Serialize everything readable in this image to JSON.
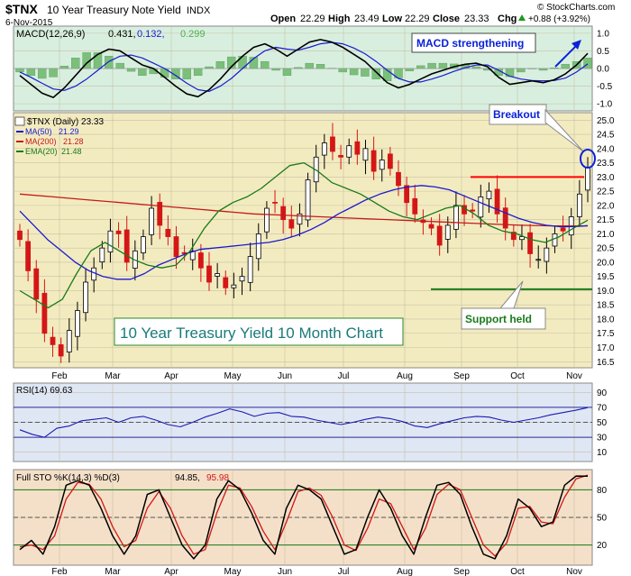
{
  "header": {
    "symbol": "$TNX",
    "name": "10 Year Treasury Note Yield",
    "exchange": "INDX",
    "date": "6-Nov-2015",
    "open_label": "Open",
    "open": "22.29",
    "high_label": "High",
    "high": "23.49",
    "low_label": "Low",
    "low": "22.29",
    "close_label": "Close",
    "close": "23.33",
    "chg_label": "Chg",
    "chg": "+0.88 (+3.92%)",
    "chg_icon": "up-triangle-icon",
    "watermark": "© StockCharts.com"
  },
  "colors": {
    "price_bg": "#f3ebc0",
    "macd_bg": "#d8efe0",
    "rsi_bg": "#dfe7f5",
    "sto_bg": "#f4e0c8",
    "candle": "#000000",
    "candle_down": "#d41616",
    "ma50": "#1a1ad0",
    "ma200": "#c41a1a",
    "ema20": "#1a7a1a",
    "annotation_blue": "#0a22d8",
    "annotation_red": "#ff0000",
    "annotation_green": "#1a7a1a"
  },
  "chart_data": [
    {
      "type": "line",
      "panel": "MACD",
      "legend": "MACD(12,26,9) 0.431, 0.132, 0.299",
      "legend_parts": [
        "MACD(12,26,9)",
        "0.431,",
        "0.132,",
        "0.299"
      ],
      "yticks": [
        "1.0",
        "0.5",
        "0.0",
        "-0.5",
        "-1.0"
      ],
      "ylim": [
        -1.15,
        1.15
      ],
      "series": [
        {
          "name": "MACD",
          "values": [
            -0.2,
            -0.45,
            -0.7,
            -0.82,
            -0.55,
            -0.2,
            0.15,
            0.4,
            0.55,
            0.5,
            0.3,
            0.1,
            0.0,
            -0.25,
            -0.5,
            -0.72,
            -0.8,
            -0.6,
            -0.3,
            0.05,
            0.35,
            0.6,
            0.7,
            0.55,
            0.35,
            0.55,
            0.75,
            0.82,
            0.75,
            0.6,
            0.4,
            0.2,
            -0.1,
            -0.4,
            -0.55,
            -0.45,
            -0.3,
            -0.15,
            -0.05,
            0.05,
            0.12,
            0.15,
            0.05,
            -0.25,
            -0.45,
            -0.4,
            -0.35,
            -0.4,
            -0.32,
            -0.15,
            0.1,
            0.43
          ]
        },
        {
          "name": "Signal",
          "values": [
            -0.1,
            -0.25,
            -0.42,
            -0.58,
            -0.62,
            -0.5,
            -0.3,
            -0.05,
            0.2,
            0.35,
            0.38,
            0.3,
            0.15,
            0.0,
            -0.2,
            -0.42,
            -0.6,
            -0.65,
            -0.5,
            -0.28,
            0.0,
            0.28,
            0.5,
            0.6,
            0.55,
            0.52,
            0.6,
            0.7,
            0.74,
            0.7,
            0.58,
            0.42,
            0.2,
            -0.05,
            -0.28,
            -0.38,
            -0.38,
            -0.3,
            -0.2,
            -0.08,
            0.02,
            0.1,
            0.1,
            -0.05,
            -0.22,
            -0.3,
            -0.34,
            -0.35,
            -0.34,
            -0.27,
            -0.1,
            0.13
          ]
        }
      ],
      "annotation": "MACD strengthening"
    },
    {
      "type": "candlestick",
      "panel": "Price",
      "legend": "$TNX (Daily) 23.33",
      "legend_items": [
        {
          "label": "MA(50)",
          "value": "21.29"
        },
        {
          "label": "MA(200)",
          "value": "21.28"
        },
        {
          "label": "EMA(20)",
          "value": "21.48"
        }
      ],
      "title": "10 Year Treasury Yield 10 Month Chart",
      "yticks": [
        "25.0",
        "24.5",
        "24.0",
        "23.5",
        "23.0",
        "22.5",
        "22.0",
        "21.5",
        "21.0",
        "20.5",
        "20.0",
        "19.5",
        "19.0",
        "18.5",
        "18.0",
        "17.5",
        "17.0",
        "16.5"
      ],
      "ylim": [
        16.35,
        25.2
      ],
      "xticks": [
        "Feb",
        "Mar",
        "Apr",
        "May",
        "Jun",
        "Jul",
        "Aug",
        "Sep",
        "Oct",
        "Nov"
      ],
      "close": [
        20.8,
        19.7,
        18.7,
        17.5,
        17.1,
        16.7,
        17.6,
        18.3,
        19.3,
        19.8,
        20.5,
        21.1,
        21.0,
        20.0,
        20.4,
        20.9,
        21.9,
        21.3,
        20.9,
        20.2,
        20.3,
        20.4,
        19.8,
        19.3,
        19.6,
        19.1,
        19.2,
        19.5,
        20.2,
        21.0,
        21.9,
        22.1,
        21.5,
        21.2,
        21.7,
        22.9,
        23.7,
        24.2,
        23.9,
        23.7,
        24.1,
        23.8,
        24.0,
        23.2,
        23.6,
        23.3,
        22.7,
        22.1,
        21.7,
        21.4,
        21.2,
        20.6,
        21.3,
        22.0,
        21.7,
        21.8,
        22.3,
        22.5,
        21.7,
        21.2,
        20.8,
        20.9,
        20.3,
        20.1,
        20.5,
        21.0,
        21.1,
        21.6,
        22.4,
        23.33
      ],
      "series": [
        {
          "name": "MA(50)",
          "values": [
            21.8,
            21.3,
            20.8,
            20.4,
            20.0,
            19.7,
            19.5,
            19.4,
            19.4,
            19.6,
            19.9,
            20.1,
            20.3,
            20.45,
            20.5,
            20.55,
            20.6,
            20.65,
            20.7,
            20.8,
            20.95,
            21.15,
            21.4,
            21.7,
            21.95,
            22.2,
            22.4,
            22.55,
            22.65,
            22.7,
            22.65,
            22.55,
            22.35,
            22.15,
            21.95,
            21.75,
            21.55,
            21.4,
            21.3,
            21.25,
            21.25,
            21.29
          ]
        },
        {
          "name": "MA(200)",
          "values": [
            22.4,
            22.3,
            22.2,
            22.1,
            22.0,
            21.9,
            21.8,
            21.7,
            21.65,
            21.6,
            21.55,
            21.5,
            21.45,
            21.4,
            21.35,
            21.3,
            21.28,
            21.28
          ]
        },
        {
          "name": "EMA(20)",
          "values": [
            19.0,
            18.7,
            18.4,
            18.7,
            19.6,
            20.4,
            20.7,
            20.4,
            20.1,
            19.9,
            19.8,
            19.9,
            20.4,
            21.2,
            21.8,
            22.1,
            22.3,
            22.6,
            23.0,
            23.4,
            23.5,
            23.2,
            22.8,
            22.6,
            22.4,
            22.1,
            21.8,
            21.6,
            21.5,
            21.7,
            21.9,
            22.0,
            21.7,
            21.3,
            21.1,
            21.0,
            20.8,
            20.7,
            20.9,
            21.2,
            21.48
          ]
        }
      ],
      "annotations": {
        "breakout_label": "Breakout",
        "resistance_level": 23.0,
        "support_label": "Support held",
        "support_level": 19.05
      }
    },
    {
      "type": "line",
      "panel": "RSI",
      "legend": "RSI(14) 69.63",
      "yticks": [
        "90",
        "70",
        "50",
        "30",
        "10"
      ],
      "ylim": [
        0,
        100
      ],
      "levels": [
        70,
        50,
        30
      ],
      "series": [
        {
          "name": "RSI(14)",
          "values": [
            40,
            34,
            30,
            42,
            45,
            52,
            54,
            56,
            50,
            56,
            58,
            53,
            47,
            44,
            50,
            57,
            62,
            68,
            64,
            58,
            62,
            63,
            58,
            57,
            53,
            50,
            47,
            50,
            54,
            57,
            55,
            51,
            45,
            43,
            48,
            52,
            56,
            58,
            57,
            53,
            50,
            53,
            56,
            60,
            63,
            66,
            69.63
          ]
        }
      ]
    },
    {
      "type": "line",
      "panel": "Full STO",
      "legend": "Full STO %K(14,3) %D(3) 94.85, 95.98",
      "legend_parts": [
        "Full STO %K(14,3) %D(3)",
        "94.85,",
        "95.98"
      ],
      "yticks": [
        "80",
        "50",
        "20"
      ],
      "ylim": [
        0,
        100
      ],
      "levels": [
        80,
        50,
        20
      ],
      "series": [
        {
          "name": "%K",
          "values": [
            15,
            25,
            10,
            40,
            85,
            90,
            85,
            60,
            30,
            10,
            30,
            75,
            80,
            50,
            20,
            5,
            20,
            70,
            90,
            80,
            55,
            25,
            10,
            60,
            85,
            80,
            70,
            40,
            10,
            15,
            50,
            80,
            60,
            30,
            10,
            50,
            85,
            88,
            75,
            40,
            10,
            5,
            30,
            70,
            60,
            40,
            45,
            85,
            95,
            94.85
          ]
        },
        {
          "name": "%D",
          "values": [
            18,
            20,
            15,
            30,
            70,
            88,
            86,
            70,
            40,
            18,
            25,
            60,
            78,
            60,
            30,
            10,
            15,
            55,
            85,
            82,
            62,
            35,
            15,
            45,
            78,
            82,
            74,
            50,
            20,
            14,
            38,
            70,
            65,
            40,
            15,
            38,
            75,
            86,
            80,
            50,
            20,
            8,
            22,
            60,
            62,
            45,
            43,
            72,
            92,
            95.98
          ]
        }
      ]
    }
  ]
}
